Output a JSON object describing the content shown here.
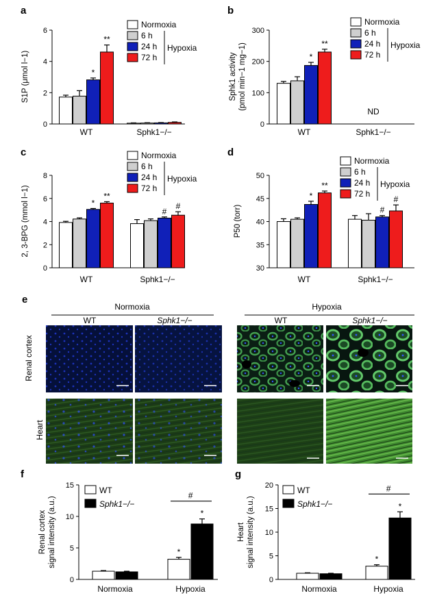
{
  "legend_abcd": {
    "normoxia": "Normoxia",
    "h6": "6 h",
    "h24": "24 h",
    "h72": "72 h",
    "hypoxia": "Hypoxia",
    "colors": {
      "normoxia": "#ffffff",
      "h6": "#cfcfcf",
      "h24": "#1020b8",
      "h72": "#ee1c1c"
    }
  },
  "legend_fg": {
    "wt": "WT",
    "ko": "Sphk1−/−"
  },
  "panel_e": {
    "letter": "e",
    "normoxia": "Normoxia",
    "hypoxia": "Hypoxia",
    "wt": "WT",
    "ko": "Sphk1−/−",
    "row1": "Renal cortex",
    "row2": "Heart"
  },
  "chart_data": [
    {
      "letter": "a",
      "type": "bar",
      "ylabel": "S1P (μmol l−1)",
      "ylim": [
        0,
        6
      ],
      "yticks": [
        "0",
        "2",
        "4",
        "6"
      ],
      "categories": [
        "WT",
        "Sphk1−/−"
      ],
      "series": [
        {
          "name": "Normoxia",
          "values": [
            1.72,
            0.05
          ],
          "err": [
            0.12,
            0.02
          ]
        },
        {
          "name": "6 h",
          "values": [
            1.78,
            0.06
          ],
          "err": [
            0.35,
            0.02
          ]
        },
        {
          "name": "24 h",
          "values": [
            2.82,
            0.07
          ],
          "err": [
            0.12,
            0.02
          ]
        },
        {
          "name": "72 h",
          "values": [
            4.6,
            0.1
          ],
          "err": [
            0.45,
            0.03
          ]
        }
      ],
      "annotations": [
        {
          "cat": 0,
          "series": 2,
          "text": "*"
        },
        {
          "cat": 0,
          "series": 3,
          "text": "**"
        }
      ]
    },
    {
      "letter": "b",
      "type": "bar",
      "ylabel": "Sphk1 activity (pmol min−1 mg−1)",
      "ylim": [
        0,
        300
      ],
      "yticks": [
        "0",
        "100",
        "200",
        "300"
      ],
      "categories": [
        "WT",
        "Sphk1−/−"
      ],
      "series": [
        {
          "name": "Normoxia",
          "values": [
            130,
            0
          ],
          "err": [
            6,
            0
          ]
        },
        {
          "name": "6 h",
          "values": [
            138,
            0
          ],
          "err": [
            13,
            0
          ]
        },
        {
          "name": "24 h",
          "values": [
            187,
            0
          ],
          "err": [
            10,
            0
          ]
        },
        {
          "name": "72 h",
          "values": [
            230,
            0
          ],
          "err": [
            9,
            0
          ]
        }
      ],
      "annotations": [
        {
          "cat": 0,
          "series": 2,
          "text": "*"
        },
        {
          "cat": 0,
          "series": 3,
          "text": "**"
        },
        {
          "cat": 1,
          "series": 1,
          "text": "ND"
        }
      ]
    },
    {
      "letter": "c",
      "type": "bar",
      "ylabel": "2, 3-BPG (mmol l−1)",
      "ylim": [
        0,
        8
      ],
      "yticks": [
        "0",
        "2",
        "4",
        "6",
        "8"
      ],
      "categories": [
        "WT",
        "Sphk1−/−"
      ],
      "series": [
        {
          "name": "Normoxia",
          "values": [
            3.92,
            3.82
          ],
          "err": [
            0.1,
            0.35
          ]
        },
        {
          "name": "6 h",
          "values": [
            4.22,
            4.08
          ],
          "err": [
            0.1,
            0.15
          ]
        },
        {
          "name": "24 h",
          "values": [
            5.05,
            4.3
          ],
          "err": [
            0.08,
            0.1
          ]
        },
        {
          "name": "72 h",
          "values": [
            5.6,
            4.55
          ],
          "err": [
            0.12,
            0.3
          ]
        }
      ],
      "annotations": [
        {
          "cat": 0,
          "series": 2,
          "text": "*"
        },
        {
          "cat": 0,
          "series": 3,
          "text": "**"
        },
        {
          "cat": 1,
          "series": 2,
          "text": "#"
        },
        {
          "cat": 1,
          "series": 3,
          "text": "#"
        }
      ]
    },
    {
      "letter": "d",
      "type": "bar",
      "ylabel": "P50 (torr)",
      "ylim": [
        30,
        50
      ],
      "yticks": [
        "30",
        "35",
        "40",
        "45",
        "50"
      ],
      "categories": [
        "WT",
        "Sphk1−/−"
      ],
      "series": [
        {
          "name": "Normoxia",
          "values": [
            40.0,
            40.5
          ],
          "err": [
            0.6,
            0.8
          ]
        },
        {
          "name": "6 h",
          "values": [
            40.5,
            40.3
          ],
          "err": [
            0.3,
            1.4
          ]
        },
        {
          "name": "24 h",
          "values": [
            43.7,
            41.0
          ],
          "err": [
            0.7,
            0.3
          ]
        },
        {
          "name": "72 h",
          "values": [
            46.2,
            42.3
          ],
          "err": [
            0.4,
            1.3
          ]
        }
      ],
      "annotations": [
        {
          "cat": 0,
          "series": 2,
          "text": "*"
        },
        {
          "cat": 0,
          "series": 3,
          "text": "**"
        },
        {
          "cat": 1,
          "series": 2,
          "text": "#"
        },
        {
          "cat": 1,
          "series": 3,
          "text": "#"
        }
      ]
    },
    {
      "letter": "f",
      "type": "bar",
      "ylabel": "Renal cortex signal intensity (a.u.)",
      "ylim": [
        0,
        15
      ],
      "yticks": [
        "0",
        "5",
        "10",
        "15"
      ],
      "categories": [
        "Normoxia",
        "Hypoxia"
      ],
      "series": [
        {
          "name": "WT",
          "values": [
            1.3,
            3.2
          ],
          "err": [
            0.1,
            0.3
          ]
        },
        {
          "name": "Sphk1−/−",
          "values": [
            1.2,
            8.8
          ],
          "err": [
            0.1,
            0.8
          ]
        }
      ],
      "annotations": [
        {
          "cat": 1,
          "series": 0,
          "text": "*"
        },
        {
          "cat": 1,
          "series": 1,
          "text": "*"
        },
        {
          "bracket": 1,
          "text": "#"
        }
      ]
    },
    {
      "letter": "g",
      "type": "bar",
      "ylabel": "Heart signal intensity (a.u.)",
      "ylim": [
        0,
        20
      ],
      "yticks": [
        "0",
        "5",
        "10",
        "15",
        "20"
      ],
      "categories": [
        "Normoxia",
        "Hypoxia"
      ],
      "series": [
        {
          "name": "WT",
          "values": [
            1.3,
            2.8
          ],
          "err": [
            0.1,
            0.3
          ]
        },
        {
          "name": "Sphk1−/−",
          "values": [
            1.2,
            13.0
          ],
          "err": [
            0.1,
            1.3
          ]
        }
      ],
      "annotations": [
        {
          "cat": 1,
          "series": 0,
          "text": "*"
        },
        {
          "cat": 1,
          "series": 1,
          "text": "*"
        },
        {
          "bracket": 1,
          "text": "#"
        }
      ]
    }
  ]
}
